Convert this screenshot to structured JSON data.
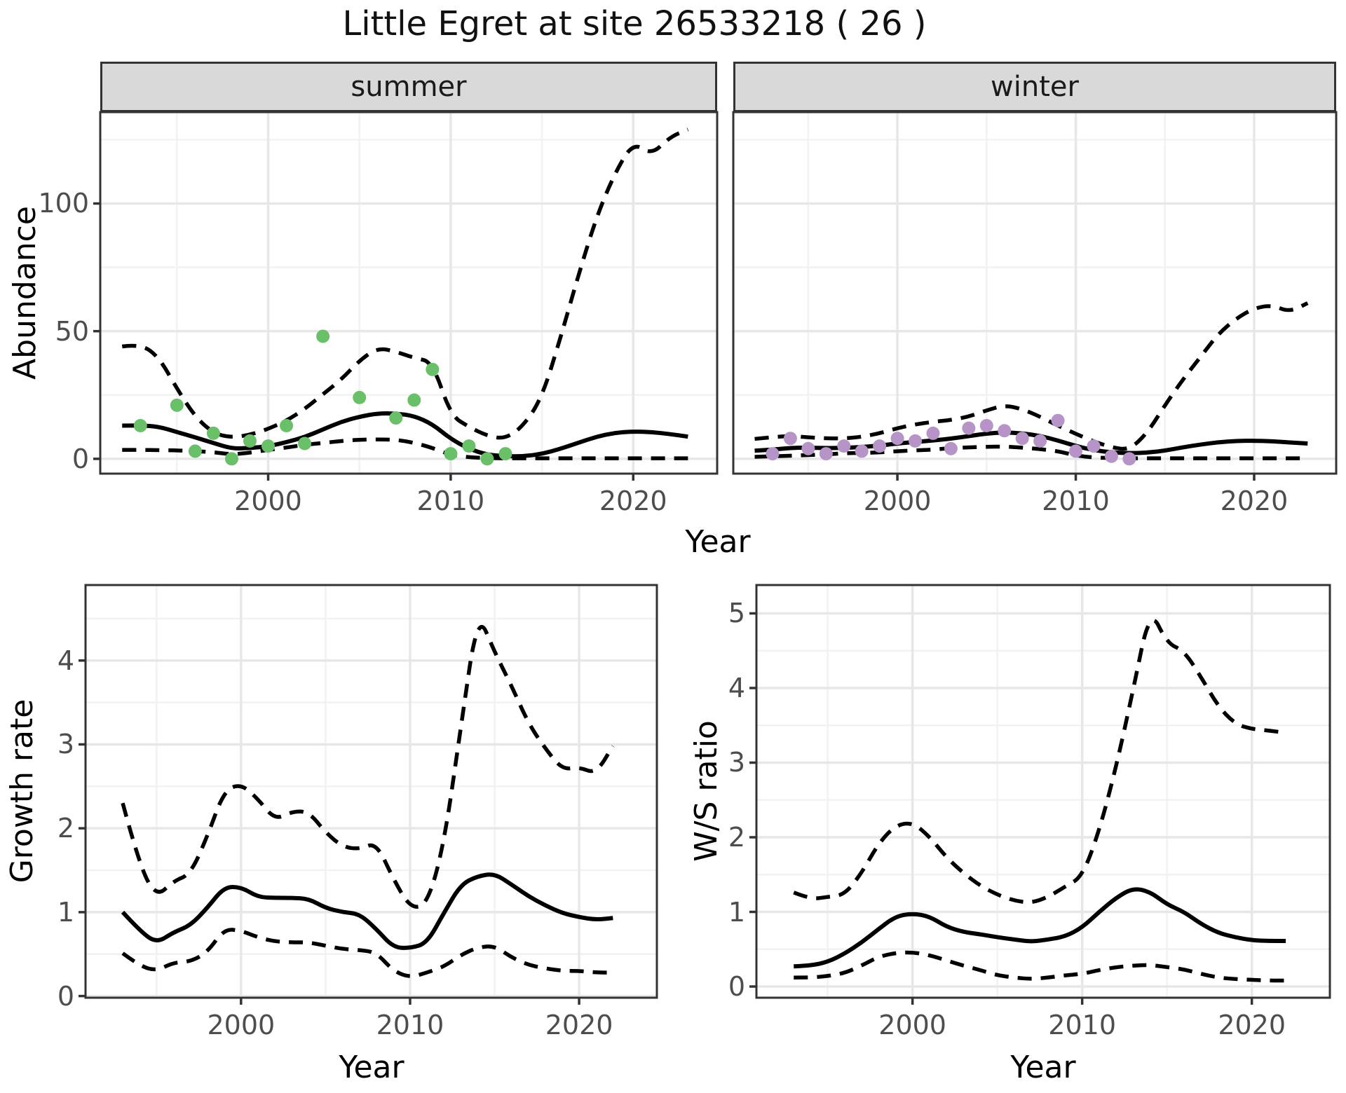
{
  "title": "Little Egret at site 26533218 ( 26 )",
  "colors": {
    "summer_point": "#6abf69",
    "winter_point": "#b794c7",
    "line": "#000000",
    "panel_border": "#333333",
    "grid_major": "#e7e7e7",
    "grid_minor": "#f2f2f2",
    "tick_mark": "#333333",
    "tick_label": "#4d4d4d",
    "strip_fill": "#d9d9d9",
    "strip_text": "#1a1a1a"
  },
  "chart_data": {
    "type": "line",
    "title": "Little Egret at site 26533218 ( 26 )",
    "legend": "none",
    "grid": "on",
    "shared": {
      "xlabel": "Year",
      "x_ticks": [
        2000,
        2010,
        2020
      ],
      "x_minor": [
        1995,
        2005,
        2015
      ],
      "xlim": [
        1990.8,
        2024.6
      ]
    },
    "panels": [
      {
        "id": "abundance-summer",
        "facet": "summer",
        "ylabel": "Abundance",
        "y_ticks": [
          0,
          50,
          100
        ],
        "y_minor": [
          25,
          75,
          125
        ],
        "ylim": [
          -5.8,
          135.8
        ],
        "series_x": [
          1992,
          1993,
          1994,
          1995,
          1996,
          1997,
          1998,
          1999,
          2000,
          2001,
          2002,
          2003,
          2004,
          2005,
          2006,
          2007,
          2008,
          2009,
          2010,
          2011,
          2012,
          2013,
          2014,
          2015,
          2016,
          2017,
          2018,
          2019,
          2020,
          2021,
          2022,
          2023
        ],
        "mean": [
          13.0,
          13.1,
          12.6,
          10.5,
          8.4,
          6.2,
          4.0,
          4.2,
          4.9,
          6.5,
          8.5,
          11.5,
          14.5,
          16.5,
          17.8,
          17.8,
          16.8,
          13.6,
          7.8,
          3.9,
          1.6,
          1.0,
          1.0,
          1.9,
          3.9,
          6.3,
          8.7,
          10.2,
          10.7,
          10.5,
          9.7,
          8.7
        ],
        "upper": [
          44,
          45,
          40,
          27.5,
          16.5,
          10,
          8.3,
          9.4,
          11.7,
          14.9,
          19.5,
          25.3,
          31,
          38.5,
          43.5,
          42,
          39.5,
          38,
          17,
          12.5,
          9,
          7.8,
          13,
          24,
          47,
          72,
          95,
          112,
          124,
          119,
          126,
          129
        ],
        "lower": [
          3.5,
          3.5,
          3.4,
          3.3,
          3.0,
          2.6,
          1.7,
          2.4,
          3.5,
          4.4,
          5.5,
          6.2,
          7.0,
          7.5,
          7.6,
          7.5,
          6.3,
          4.3,
          1.5,
          0.6,
          0.3,
          0.2,
          0.2,
          0.2,
          0.2,
          0.2,
          0.2,
          0.2,
          0.2,
          0.2,
          0.2,
          0.2
        ],
        "points_x": [
          1993,
          1995,
          1996,
          1997,
          1998,
          1999,
          2000,
          2001,
          2002,
          2003,
          2005,
          2007,
          2008,
          2009,
          2010,
          2011,
          2012,
          2013
        ],
        "points_y": [
          13,
          21,
          3,
          10,
          0,
          7,
          5,
          13,
          6,
          48,
          24,
          16,
          23,
          35,
          2,
          5,
          0,
          2
        ],
        "point_color_key": "summer_point"
      },
      {
        "id": "abundance-winter",
        "facet": "winter",
        "ylabel": "Abundance",
        "y_ticks": [
          0,
          50,
          100
        ],
        "y_minor": [
          25,
          75,
          125
        ],
        "ylim": [
          -5.8,
          135.8
        ],
        "series_x": [
          1992,
          1993,
          1994,
          1995,
          1996,
          1997,
          1998,
          1999,
          2000,
          2001,
          2002,
          2003,
          2004,
          2005,
          2006,
          2007,
          2008,
          2009,
          2010,
          2011,
          2012,
          2013,
          2014,
          2015,
          2016,
          2017,
          2018,
          2019,
          2020,
          2021,
          2022,
          2023
        ],
        "mean": [
          3.2,
          3.6,
          4.3,
          4.4,
          4.2,
          4.3,
          4.6,
          5.2,
          6.0,
          6.6,
          7.2,
          7.9,
          8.9,
          9.9,
          10.4,
          10.0,
          9.0,
          7.2,
          5.0,
          3.4,
          2.5,
          2.2,
          2.4,
          3.2,
          4.5,
          5.6,
          6.5,
          7.0,
          7.1,
          6.9,
          6.4,
          6.0
        ],
        "upper": [
          7.8,
          8.5,
          9.0,
          8.4,
          8.0,
          8.0,
          8.6,
          10.0,
          12.0,
          13.5,
          14.5,
          15.2,
          16.5,
          19.0,
          21.0,
          19.5,
          16.5,
          13.0,
          9.8,
          6.8,
          4.5,
          3.5,
          10.0,
          21.0,
          31.0,
          40.0,
          49.0,
          55.0,
          59.0,
          60.2,
          57.5,
          61.0
        ],
        "lower": [
          0.8,
          1.0,
          1.2,
          1.5,
          1.7,
          2.2,
          2.3,
          2.5,
          3.0,
          3.3,
          3.6,
          4.2,
          4.5,
          4.7,
          4.8,
          4.4,
          3.8,
          3.0,
          1.3,
          0.5,
          0.3,
          0.2,
          0.2,
          0.2,
          0.2,
          0.2,
          0.2,
          0.2,
          0.2,
          0.2,
          0.2,
          0.2
        ],
        "points_x": [
          1993,
          1994,
          1995,
          1996,
          1997,
          1998,
          1999,
          2000,
          2001,
          2002,
          2003,
          2004,
          2005,
          2006,
          2007,
          2008,
          2009,
          2010,
          2011,
          2012,
          2013
        ],
        "points_y": [
          2,
          8,
          4,
          2,
          5,
          3,
          5,
          8,
          7,
          10,
          4,
          12,
          13,
          11,
          8,
          7,
          15,
          3,
          5,
          1,
          0
        ],
        "point_color_key": "winter_point"
      },
      {
        "id": "growth-rate",
        "facet": null,
        "ylabel": "Growth rate",
        "y_ticks": [
          0,
          1,
          2,
          3,
          4
        ],
        "y_minor": [
          0.5,
          1.5,
          2.5,
          3.5,
          4.5
        ],
        "ylim": [
          -0.02,
          4.9
        ],
        "series_x": [
          1993,
          1994,
          1995,
          1996,
          1997,
          1998,
          1999,
          2000,
          2001,
          2002,
          2003,
          2004,
          2005,
          2006,
          2007,
          2008,
          2009,
          2010,
          2011,
          2012,
          2013,
          2014,
          2015,
          2016,
          2017,
          2018,
          2019,
          2020,
          2021,
          2022
        ],
        "mean": [
          1.0,
          0.78,
          0.63,
          0.76,
          0.84,
          1.05,
          1.3,
          1.3,
          1.18,
          1.17,
          1.17,
          1.16,
          1.05,
          1.0,
          0.98,
          0.8,
          0.58,
          0.57,
          0.63,
          0.99,
          1.33,
          1.43,
          1.46,
          1.33,
          1.19,
          1.08,
          0.99,
          0.94,
          0.91,
          0.93
        ],
        "upper": [
          2.3,
          1.55,
          1.18,
          1.37,
          1.45,
          1.9,
          2.45,
          2.53,
          2.35,
          2.1,
          2.2,
          2.2,
          1.95,
          1.78,
          1.75,
          1.83,
          1.4,
          1.05,
          1.08,
          1.8,
          3.2,
          4.58,
          4.1,
          3.7,
          3.25,
          2.95,
          2.7,
          2.73,
          2.65,
          2.98
        ],
        "lower": [
          0.51,
          0.36,
          0.3,
          0.4,
          0.41,
          0.52,
          0.8,
          0.78,
          0.7,
          0.65,
          0.64,
          0.64,
          0.6,
          0.56,
          0.55,
          0.52,
          0.3,
          0.22,
          0.28,
          0.35,
          0.49,
          0.58,
          0.6,
          0.46,
          0.37,
          0.33,
          0.3,
          0.3,
          0.28,
          0.28
        ],
        "points_x": [],
        "points_y": [],
        "point_color_key": null
      },
      {
        "id": "ws-ratio",
        "facet": null,
        "ylabel": "W/S ratio",
        "y_ticks": [
          0,
          1,
          2,
          3,
          4,
          5
        ],
        "y_minor": [
          0.5,
          1.5,
          2.5,
          3.5,
          4.5
        ],
        "ylim": [
          -0.15,
          5.38
        ],
        "series_x": [
          1993,
          1994,
          1995,
          1996,
          1997,
          1998,
          1999,
          2000,
          2001,
          2002,
          2003,
          2004,
          2005,
          2006,
          2007,
          2008,
          2009,
          2010,
          2011,
          2012,
          2013,
          2014,
          2015,
          2016,
          2017,
          2018,
          2019,
          2020,
          2021,
          2022
        ],
        "mean": [
          0.27,
          0.28,
          0.33,
          0.44,
          0.59,
          0.77,
          0.94,
          0.98,
          0.94,
          0.8,
          0.73,
          0.7,
          0.66,
          0.63,
          0.6,
          0.63,
          0.67,
          0.79,
          1.0,
          1.19,
          1.32,
          1.27,
          1.1,
          1.0,
          0.84,
          0.72,
          0.66,
          0.62,
          0.61,
          0.61
        ],
        "upper": [
          1.26,
          1.17,
          1.2,
          1.23,
          1.52,
          1.92,
          2.16,
          2.2,
          2.01,
          1.73,
          1.52,
          1.35,
          1.23,
          1.15,
          1.12,
          1.2,
          1.34,
          1.47,
          2.08,
          2.94,
          3.97,
          5.07,
          4.6,
          4.5,
          4.15,
          3.76,
          3.52,
          3.45,
          3.43,
          3.4
        ],
        "lower": [
          0.12,
          0.12,
          0.14,
          0.18,
          0.28,
          0.4,
          0.45,
          0.46,
          0.42,
          0.35,
          0.28,
          0.22,
          0.15,
          0.12,
          0.1,
          0.12,
          0.15,
          0.17,
          0.22,
          0.26,
          0.28,
          0.29,
          0.26,
          0.23,
          0.17,
          0.12,
          0.1,
          0.09,
          0.08,
          0.08
        ],
        "points_x": [],
        "points_y": [],
        "point_color_key": null
      }
    ]
  }
}
